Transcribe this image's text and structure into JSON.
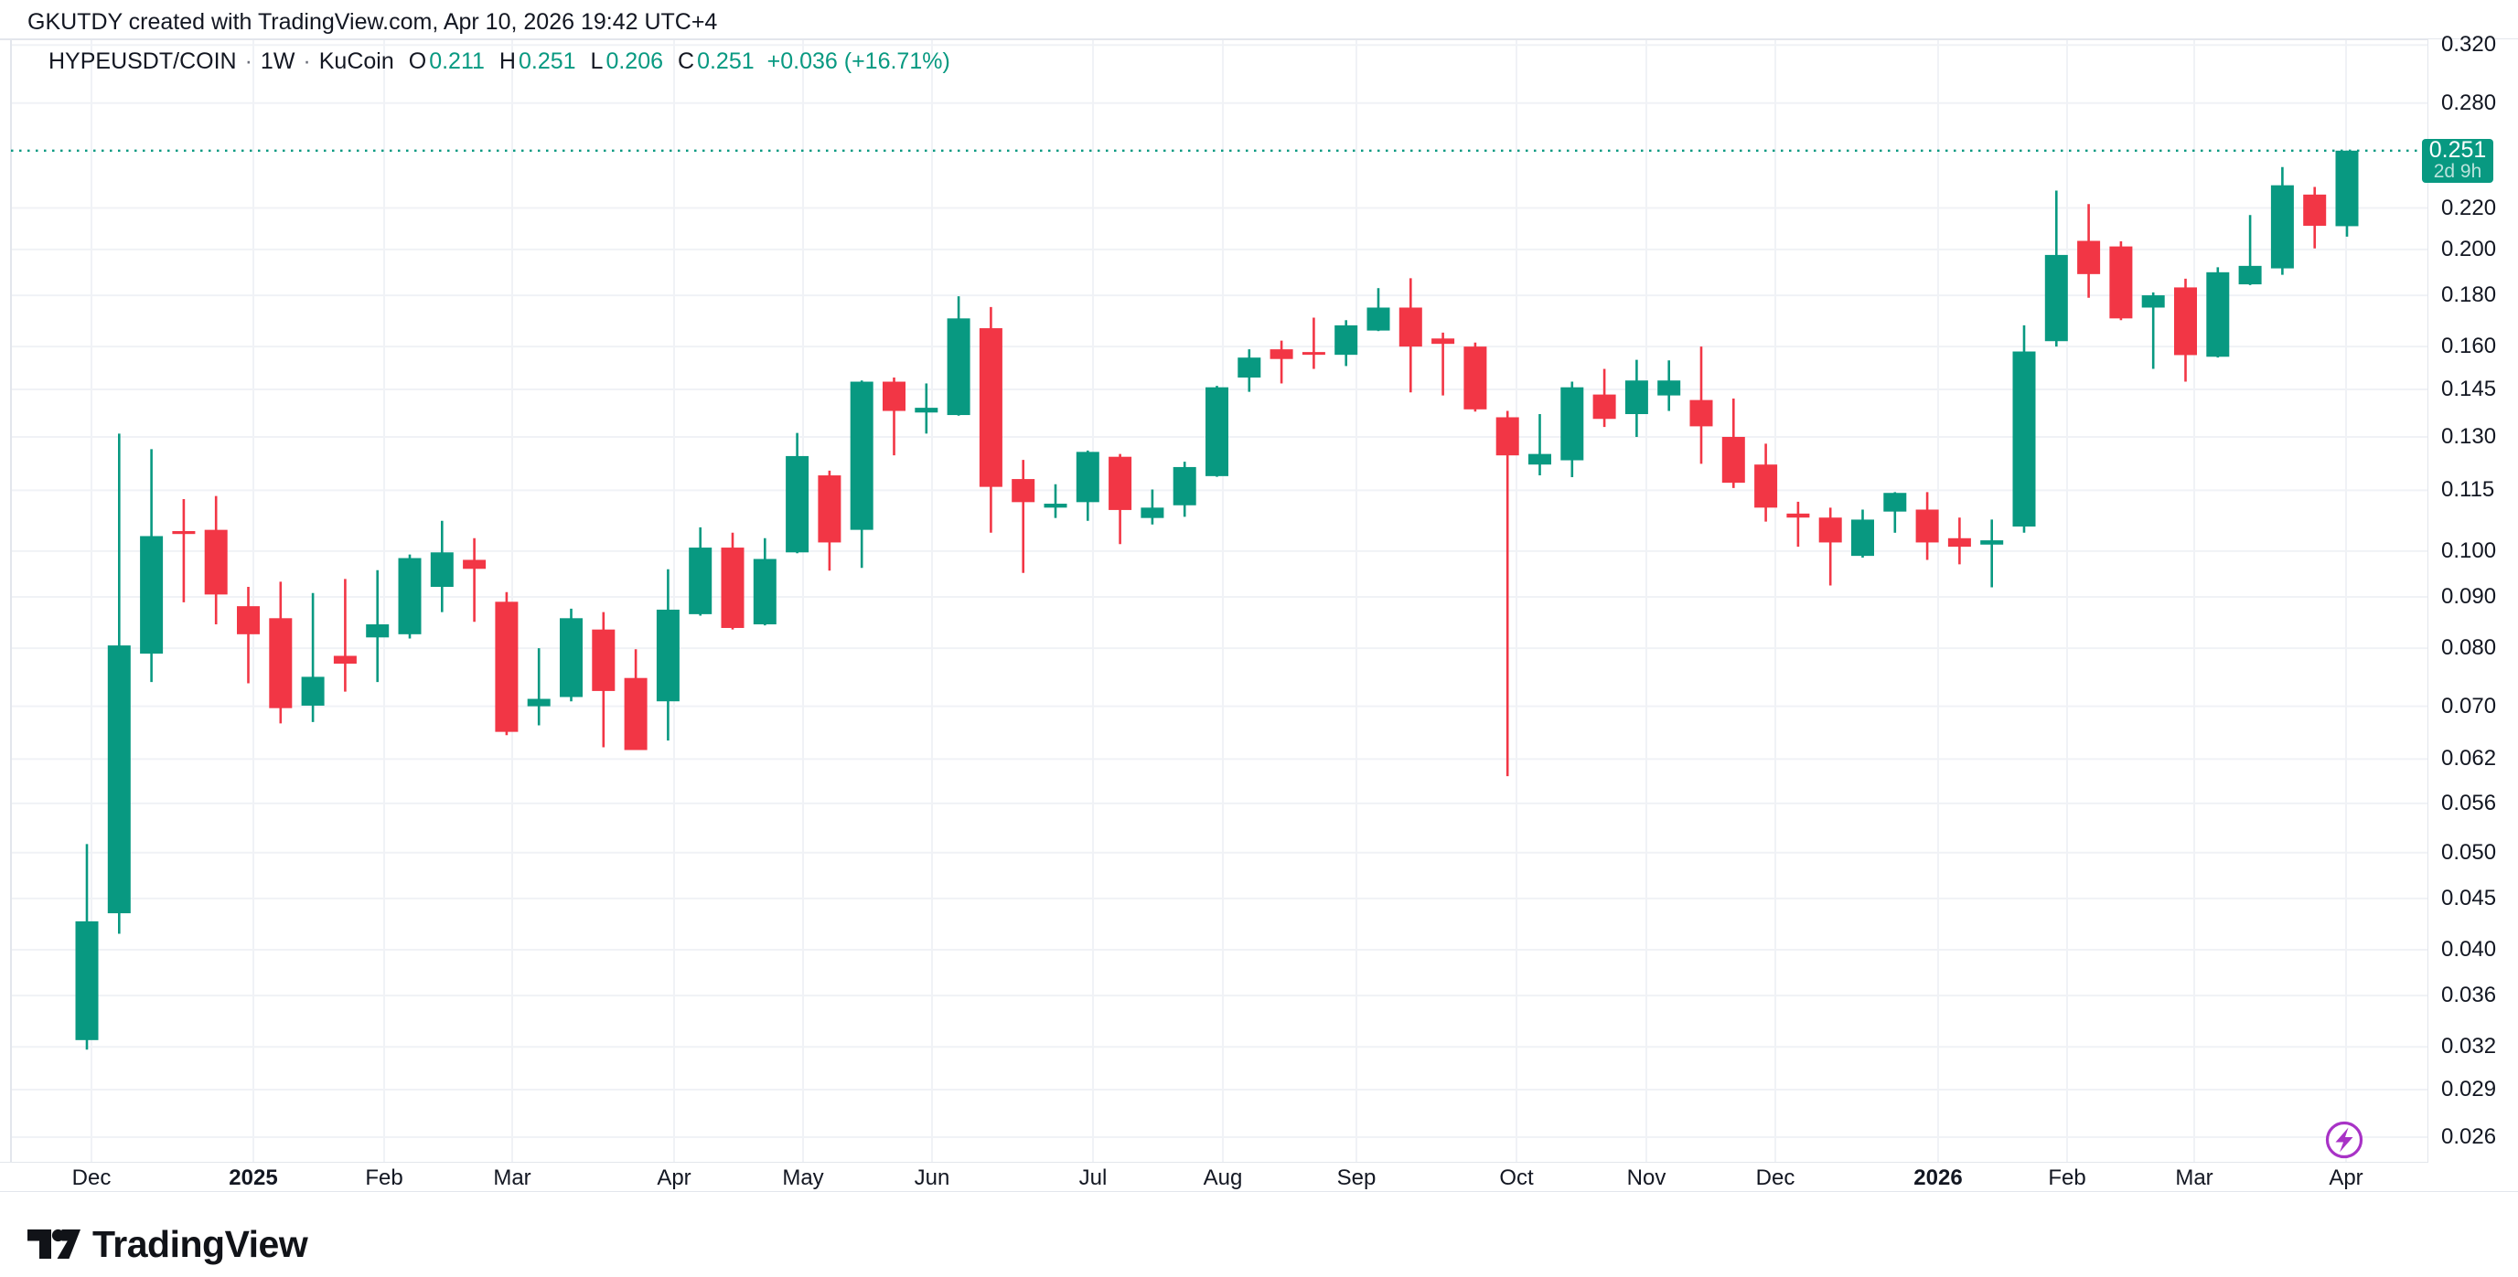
{
  "header": {
    "note": "GKUTDY created with TradingView.com, Apr 10, 2026 19:42 UTC+4"
  },
  "legend": {
    "symbol": "HYPEUSDT/COIN",
    "dot": "·",
    "timeframe": "1W",
    "exchange": "KuCoin",
    "o_label": "O",
    "o_value": "0.211",
    "h_label": "H",
    "h_value": "0.251",
    "l_label": "L",
    "l_value": "0.206",
    "c_label": "C",
    "c_value": "0.251",
    "change": "+0.036 (+16.71%)"
  },
  "price_label": {
    "price": "0.251",
    "countdown": "2d 9h"
  },
  "logo": {
    "text": "TradingView"
  },
  "badge": {
    "icon": "lightning-bolt"
  },
  "colors": {
    "up": "#089981",
    "down": "#f23645",
    "text": "#131722",
    "grid": "#f0f2f6",
    "border": "#e3e6ec",
    "badge": "#a832c6",
    "label_bg": "#089981"
  },
  "chart_data": {
    "type": "candlestick",
    "title": "HYPEUSDT/COIN · 1W · KuCoin",
    "symbol": "HYPEUSDT/COIN",
    "timeframe": "1W",
    "exchange": "KuCoin",
    "scale": "log",
    "grid": true,
    "legend_position": "top-left",
    "ylim": [
      0.0245,
      0.345
    ],
    "y_ticks": [
      "0.320",
      "0.280",
      "0.220",
      "0.200",
      "0.180",
      "0.160",
      "0.145",
      "0.130",
      "0.115",
      "0.100",
      "0.090",
      "0.080",
      "0.070",
      "0.062",
      "0.056",
      "0.050",
      "0.045",
      "0.040",
      "0.036",
      "0.032",
      "0.029",
      "0.026"
    ],
    "last_price": 0.251,
    "countdown": "2d 9h",
    "x_months": [
      {
        "label": "Dec",
        "x": 100
      },
      {
        "label": "2025",
        "x": 277,
        "bold": true
      },
      {
        "label": "Feb",
        "x": 420
      },
      {
        "label": "Mar",
        "x": 560
      },
      {
        "label": "Apr",
        "x": 737
      },
      {
        "label": "May",
        "x": 878
      },
      {
        "label": "Jun",
        "x": 1019
      },
      {
        "label": "Jul",
        "x": 1195
      },
      {
        "label": "Aug",
        "x": 1337
      },
      {
        "label": "Sep",
        "x": 1483
      },
      {
        "label": "Oct",
        "x": 1658
      },
      {
        "label": "Nov",
        "x": 1800
      },
      {
        "label": "Dec",
        "x": 1941
      },
      {
        "label": "2026",
        "x": 2119,
        "bold": true
      },
      {
        "label": "Feb",
        "x": 2260
      },
      {
        "label": "Mar",
        "x": 2399
      },
      {
        "label": "Apr",
        "x": 2565
      }
    ],
    "candles": [
      {
        "o": 0.0325,
        "h": 0.051,
        "l": 0.0318,
        "c": 0.0427
      },
      {
        "o": 0.0435,
        "h": 0.131,
        "l": 0.0415,
        "c": 0.0805
      },
      {
        "o": 0.079,
        "h": 0.1264,
        "l": 0.074,
        "c": 0.1035
      },
      {
        "o": 0.1047,
        "h": 0.1127,
        "l": 0.0889,
        "c": 0.104
      },
      {
        "o": 0.105,
        "h": 0.1135,
        "l": 0.0845,
        "c": 0.0905
      },
      {
        "o": 0.0881,
        "h": 0.0921,
        "l": 0.0738,
        "c": 0.0826
      },
      {
        "o": 0.0857,
        "h": 0.0932,
        "l": 0.0673,
        "c": 0.0697
      },
      {
        "o": 0.0701,
        "h": 0.0908,
        "l": 0.0675,
        "c": 0.0749
      },
      {
        "o": 0.0786,
        "h": 0.0938,
        "l": 0.0724,
        "c": 0.0772
      },
      {
        "o": 0.082,
        "h": 0.0957,
        "l": 0.074,
        "c": 0.0845
      },
      {
        "o": 0.0826,
        "h": 0.0992,
        "l": 0.0818,
        "c": 0.0984
      },
      {
        "o": 0.0921,
        "h": 0.1072,
        "l": 0.0869,
        "c": 0.0997
      },
      {
        "o": 0.098,
        "h": 0.103,
        "l": 0.085,
        "c": 0.096
      },
      {
        "o": 0.089,
        "h": 0.091,
        "l": 0.0655,
        "c": 0.066
      },
      {
        "o": 0.07,
        "h": 0.08,
        "l": 0.067,
        "c": 0.0712
      },
      {
        "o": 0.0715,
        "h": 0.0876,
        "l": 0.0708,
        "c": 0.0857
      },
      {
        "o": 0.0835,
        "h": 0.0869,
        "l": 0.0637,
        "c": 0.0725
      },
      {
        "o": 0.0747,
        "h": 0.0798,
        "l": 0.0633,
        "c": 0.0633
      },
      {
        "o": 0.0708,
        "h": 0.0959,
        "l": 0.0647,
        "c": 0.0874
      },
      {
        "o": 0.0865,
        "h": 0.1056,
        "l": 0.0862,
        "c": 0.1008
      },
      {
        "o": 0.1008,
        "h": 0.1043,
        "l": 0.0835,
        "c": 0.0838
      },
      {
        "o": 0.0845,
        "h": 0.103,
        "l": 0.0843,
        "c": 0.0982
      },
      {
        "o": 0.0997,
        "h": 0.1312,
        "l": 0.0995,
        "c": 0.1244
      },
      {
        "o": 0.119,
        "h": 0.1203,
        "l": 0.0956,
        "c": 0.102
      },
      {
        "o": 0.105,
        "h": 0.148,
        "l": 0.0962,
        "c": 0.1476
      },
      {
        "o": 0.1476,
        "h": 0.149,
        "l": 0.1246,
        "c": 0.138
      },
      {
        "o": 0.1375,
        "h": 0.147,
        "l": 0.131,
        "c": 0.139
      },
      {
        "o": 0.1367,
        "h": 0.1796,
        "l": 0.1365,
        "c": 0.1707
      },
      {
        "o": 0.1669,
        "h": 0.1752,
        "l": 0.1043,
        "c": 0.1159
      },
      {
        "o": 0.118,
        "h": 0.1233,
        "l": 0.0951,
        "c": 0.1119
      },
      {
        "o": 0.1105,
        "h": 0.1166,
        "l": 0.1079,
        "c": 0.1115
      },
      {
        "o": 0.1119,
        "h": 0.126,
        "l": 0.1072,
        "c": 0.1256
      },
      {
        "o": 0.1242,
        "h": 0.125,
        "l": 0.1016,
        "c": 0.1099
      },
      {
        "o": 0.1079,
        "h": 0.1152,
        "l": 0.1063,
        "c": 0.1105
      },
      {
        "o": 0.1111,
        "h": 0.1228,
        "l": 0.1082,
        "c": 0.1213
      },
      {
        "o": 0.1188,
        "h": 0.1462,
        "l": 0.1186,
        "c": 0.1457
      },
      {
        "o": 0.149,
        "h": 0.159,
        "l": 0.1442,
        "c": 0.156
      },
      {
        "o": 0.159,
        "h": 0.1622,
        "l": 0.147,
        "c": 0.1555
      },
      {
        "o": 0.158,
        "h": 0.171,
        "l": 0.152,
        "c": 0.1572
      },
      {
        "o": 0.157,
        "h": 0.17,
        "l": 0.153,
        "c": 0.168
      },
      {
        "o": 0.166,
        "h": 0.183,
        "l": 0.1658,
        "c": 0.175
      },
      {
        "o": 0.175,
        "h": 0.1872,
        "l": 0.144,
        "c": 0.16
      },
      {
        "o": 0.163,
        "h": 0.1652,
        "l": 0.143,
        "c": 0.161
      },
      {
        "o": 0.16,
        "h": 0.1615,
        "l": 0.1378,
        "c": 0.1385
      },
      {
        "o": 0.136,
        "h": 0.138,
        "l": 0.0596,
        "c": 0.1246
      },
      {
        "o": 0.122,
        "h": 0.137,
        "l": 0.119,
        "c": 0.125
      },
      {
        "o": 0.1232,
        "h": 0.1476,
        "l": 0.1185,
        "c": 0.1457
      },
      {
        "o": 0.1433,
        "h": 0.152,
        "l": 0.133,
        "c": 0.1355
      },
      {
        "o": 0.137,
        "h": 0.1552,
        "l": 0.13,
        "c": 0.148
      },
      {
        "o": 0.143,
        "h": 0.155,
        "l": 0.138,
        "c": 0.148
      },
      {
        "o": 0.1415,
        "h": 0.16,
        "l": 0.1222,
        "c": 0.1332
      },
      {
        "o": 0.13,
        "h": 0.142,
        "l": 0.1156,
        "c": 0.117
      },
      {
        "o": 0.122,
        "h": 0.128,
        "l": 0.107,
        "c": 0.1105
      },
      {
        "o": 0.109,
        "h": 0.112,
        "l": 0.101,
        "c": 0.108
      },
      {
        "o": 0.108,
        "h": 0.1105,
        "l": 0.0924,
        "c": 0.102
      },
      {
        "o": 0.0989,
        "h": 0.11,
        "l": 0.0985,
        "c": 0.1075
      },
      {
        "o": 0.1095,
        "h": 0.1145,
        "l": 0.1043,
        "c": 0.1143
      },
      {
        "o": 0.11,
        "h": 0.1145,
        "l": 0.098,
        "c": 0.102
      },
      {
        "o": 0.103,
        "h": 0.108,
        "l": 0.097,
        "c": 0.101
      },
      {
        "o": 0.1015,
        "h": 0.1075,
        "l": 0.092,
        "c": 0.1025
      },
      {
        "o": 0.1058,
        "h": 0.168,
        "l": 0.1043,
        "c": 0.1582
      },
      {
        "o": 0.162,
        "h": 0.229,
        "l": 0.16,
        "c": 0.1975
      },
      {
        "o": 0.204,
        "h": 0.222,
        "l": 0.179,
        "c": 0.189
      },
      {
        "o": 0.2014,
        "h": 0.2038,
        "l": 0.17,
        "c": 0.1707
      },
      {
        "o": 0.175,
        "h": 0.1812,
        "l": 0.152,
        "c": 0.18
      },
      {
        "o": 0.1833,
        "h": 0.187,
        "l": 0.1476,
        "c": 0.1569
      },
      {
        "o": 0.1563,
        "h": 0.192,
        "l": 0.156,
        "c": 0.1898
      },
      {
        "o": 0.1846,
        "h": 0.2165,
        "l": 0.1843,
        "c": 0.1926
      },
      {
        "o": 0.1915,
        "h": 0.2417,
        "l": 0.1887,
        "c": 0.2318
      },
      {
        "o": 0.2269,
        "h": 0.2309,
        "l": 0.2005,
        "c": 0.2112
      },
      {
        "o": 0.211,
        "h": 0.251,
        "l": 0.206,
        "c": 0.251
      }
    ]
  }
}
